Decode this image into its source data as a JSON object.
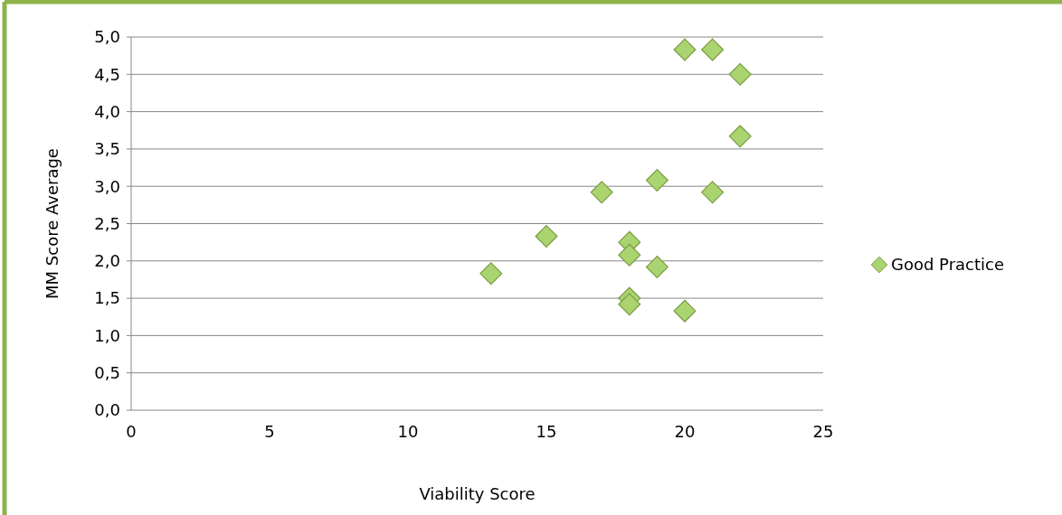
{
  "chart_data": {
    "type": "scatter",
    "xlabel": "Viability Score",
    "ylabel": "MM Score Average",
    "x": [
      20,
      21,
      22,
      22,
      19,
      17,
      21,
      15,
      18,
      18,
      19,
      13,
      18,
      18,
      20
    ],
    "series": [
      {
        "name": "Good Practice",
        "color": "#a9d46f",
        "values": [
          4.83,
          4.83,
          4.5,
          3.67,
          3.08,
          2.92,
          2.92,
          2.33,
          2.25,
          2.08,
          1.92,
          1.83,
          1.5,
          1.42,
          1.33
        ]
      }
    ],
    "xlim": [
      0,
      25
    ],
    "xticks": [
      0,
      5,
      10,
      15,
      20,
      25
    ],
    "ylim": [
      0,
      5
    ],
    "yticks": [
      {
        "value": 0,
        "label": "0,0"
      },
      {
        "value": 0.5,
        "label": "0,5"
      },
      {
        "value": 1,
        "label": "1,0"
      },
      {
        "value": 1.5,
        "label": "1,5"
      },
      {
        "value": 2,
        "label": "2,0"
      },
      {
        "value": 2.5,
        "label": "2,5"
      },
      {
        "value": 3,
        "label": "3,0"
      },
      {
        "value": 3.5,
        "label": "3,5"
      },
      {
        "value": 4,
        "label": "4,0"
      },
      {
        "value": 4.5,
        "label": "4,5"
      },
      {
        "value": 5,
        "label": "5,0"
      }
    ],
    "grid": "y",
    "legend": "right",
    "marker": "diamond"
  }
}
